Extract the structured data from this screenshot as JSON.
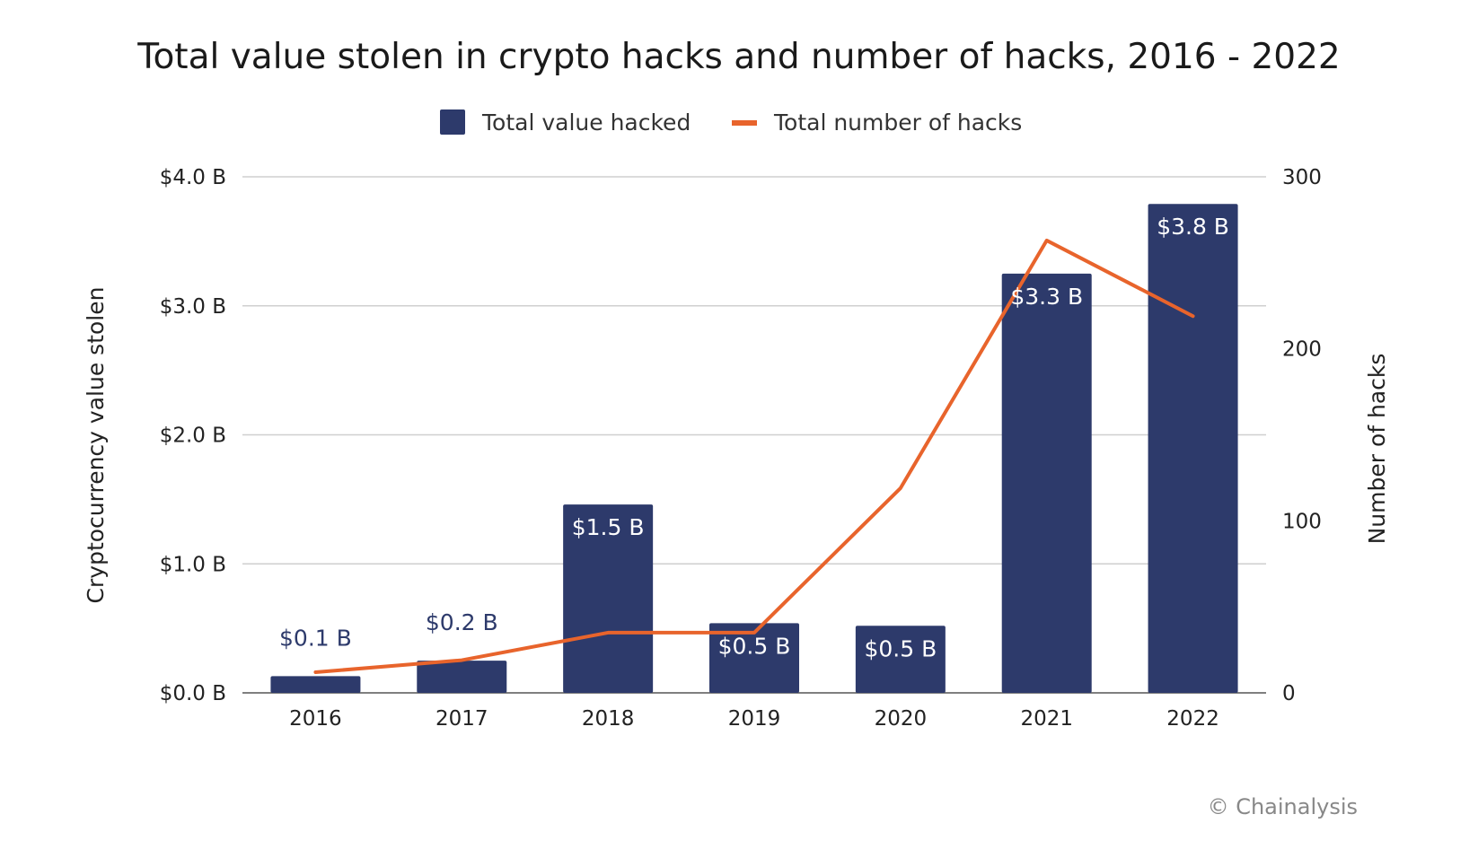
{
  "chart_data": {
    "type": "bar",
    "title": "Total value stolen in crypto hacks and number of hacks, 2016 - 2022",
    "categories": [
      "2016",
      "2017",
      "2018",
      "2019",
      "2020",
      "2021",
      "2022"
    ],
    "series": [
      {
        "name": "Total value hacked",
        "type": "bar",
        "axis": "left",
        "color": "#2d3a6b",
        "values": [
          0.13,
          0.25,
          1.46,
          0.54,
          0.52,
          3.25,
          3.79
        ],
        "labels": [
          "$0.1 B",
          "$0.2 B",
          "$1.5 B",
          "$0.5 B",
          "$0.5 B",
          "$3.3 B",
          "$3.8 B"
        ]
      },
      {
        "name": "Total number of hacks",
        "type": "line",
        "axis": "right",
        "color": "#e8642c",
        "values": [
          12,
          19,
          35,
          35,
          119,
          263,
          219
        ]
      }
    ],
    "ylabel_left": "Cryptocurrency value stolen",
    "ylabel_right": "Number of hacks",
    "ylim_left": [
      0,
      4
    ],
    "ylim_right": [
      0,
      300
    ],
    "yticks_left": [
      "$0.0 B",
      "$1.0 B",
      "$2.0 B",
      "$3.0 B",
      "$4.0 B"
    ],
    "yticks_left_values": [
      0,
      1,
      2,
      3,
      4
    ],
    "yticks_right": [
      "0",
      "100",
      "200",
      "300"
    ],
    "yticks_right_values": [
      0,
      100,
      200,
      300
    ],
    "grid": true,
    "legend_position": "top-center",
    "source": "© Chainalysis"
  }
}
